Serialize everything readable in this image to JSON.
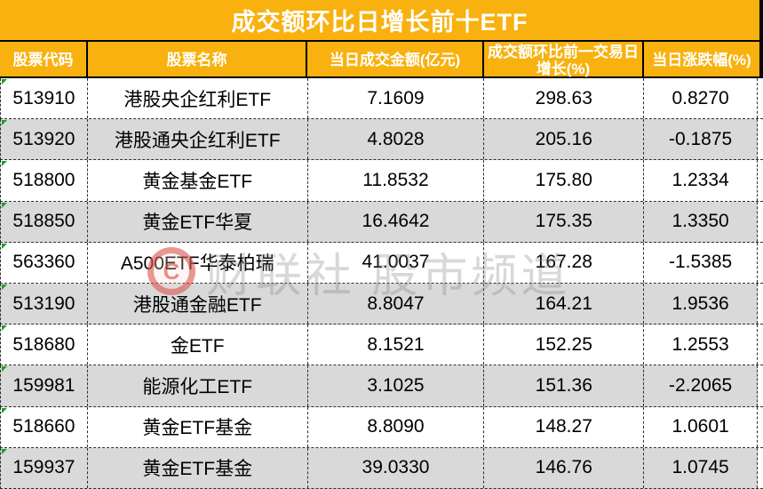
{
  "title": "成交额环比日增长前十ETF",
  "table": {
    "headers": [
      "股票代码",
      "股票名称",
      "当日成交金额(亿元)",
      "成交额环比前一交易日增长(%)",
      "当日涨跌幅(%)"
    ],
    "rows": [
      {
        "code": "513910",
        "name": "港股央企红利ETF",
        "amount": "7.1609",
        "growth": "298.63",
        "change": "0.8270"
      },
      {
        "code": "513920",
        "name": "港股通央企红利ETF",
        "amount": "4.8028",
        "growth": "205.16",
        "change": "-0.1875"
      },
      {
        "code": "518800",
        "name": "黄金基金ETF",
        "amount": "11.8532",
        "growth": "175.80",
        "change": "1.2334"
      },
      {
        "code": "518850",
        "name": "黄金ETF华夏",
        "amount": "16.4642",
        "growth": "175.35",
        "change": "1.3350"
      },
      {
        "code": "563360",
        "name": "A500ETF华泰柏瑞",
        "amount": "41.0037",
        "growth": "167.28",
        "change": "-1.5385"
      },
      {
        "code": "513190",
        "name": "港股通金融ETF",
        "amount": "8.8047",
        "growth": "164.21",
        "change": "1.9536"
      },
      {
        "code": "518680",
        "name": "金ETF",
        "amount": "8.1521",
        "growth": "152.25",
        "change": "1.2553"
      },
      {
        "code": "159981",
        "name": "能源化工ETF",
        "amount": "3.1025",
        "growth": "151.36",
        "change": "-2.2065"
      },
      {
        "code": "518660",
        "name": "黄金ETF基金",
        "amount": "8.8090",
        "growth": "148.27",
        "change": "1.0601"
      },
      {
        "code": "159937",
        "name": "黄金ETF基金",
        "amount": "39.0330",
        "growth": "146.76",
        "change": "1.0745"
      }
    ]
  },
  "watermark": {
    "logo_letter": "C",
    "text": "财联社 股市频道"
  },
  "colors": {
    "header_bg": "#F8B10E",
    "header_text": "#FFFFFF",
    "row_bg": "#FFFFFF",
    "row_alt_bg": "#D9D9D9",
    "body_text": "#000000",
    "grid_border": "#2E2E2E",
    "indicator_green": "#1F9F24",
    "watermark_red": "#D63A33",
    "watermark_gray": "#7D7D7D"
  },
  "chart_data": {
    "type": "table",
    "title": "成交额环比日增长前十ETF",
    "columns": [
      "股票代码",
      "股票名称",
      "当日成交金额(亿元)",
      "成交额环比前一交易日增长(%)",
      "当日涨跌幅(%)"
    ],
    "rows": [
      [
        "513910",
        "港股央企红利ETF",
        7.1609,
        298.63,
        0.827
      ],
      [
        "513920",
        "港股通央企红利ETF",
        4.8028,
        205.16,
        -0.1875
      ],
      [
        "518800",
        "黄金基金ETF",
        11.8532,
        175.8,
        1.2334
      ],
      [
        "518850",
        "黄金ETF华夏",
        16.4642,
        175.35,
        1.335
      ],
      [
        "563360",
        "A500ETF华泰柏瑞",
        41.0037,
        167.28,
        -1.5385
      ],
      [
        "513190",
        "港股通金融ETF",
        8.8047,
        164.21,
        1.9536
      ],
      [
        "518680",
        "金ETF",
        8.1521,
        152.25,
        1.2553
      ],
      [
        "159981",
        "能源化工ETF",
        3.1025,
        151.36,
        -2.2065
      ],
      [
        "518660",
        "黄金ETF基金",
        8.809,
        148.27,
        1.0601
      ],
      [
        "159937",
        "黄金ETF基金",
        39.033,
        146.76,
        1.0745
      ]
    ]
  }
}
